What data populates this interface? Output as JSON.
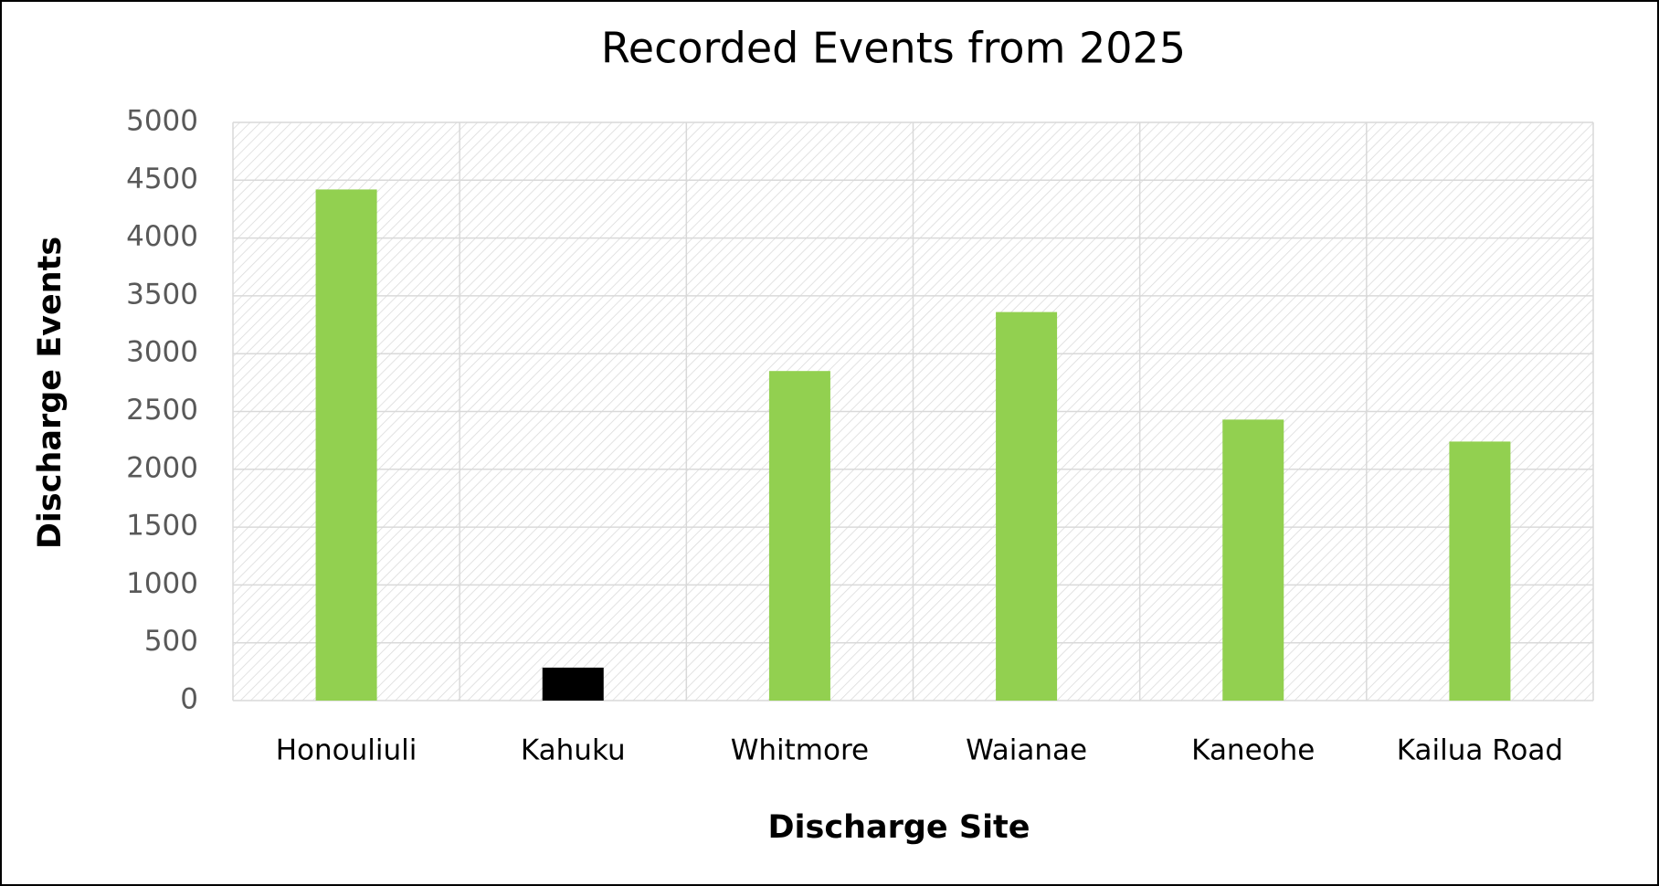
{
  "chart_data": {
    "type": "bar",
    "title": "Recorded Events from 2025",
    "x_label": "Discharge Site",
    "y_label": "Discharge Events",
    "categories": [
      "Honouliuli",
      "Kahuku",
      "Whitmore",
      "Waianae",
      "Kaneohe",
      "Kailua Road"
    ],
    "values": [
      4420,
      285,
      2850,
      3360,
      2430,
      2240
    ],
    "colors": [
      "#92d050",
      "#000000",
      "#92d050",
      "#92d050",
      "#92d050",
      "#92d050"
    ],
    "ylim": [
      0,
      5000
    ],
    "yticks": [
      0,
      500,
      1000,
      1500,
      2000,
      2500,
      3000,
      3500,
      4000,
      4500,
      5000
    ],
    "grid": true
  }
}
